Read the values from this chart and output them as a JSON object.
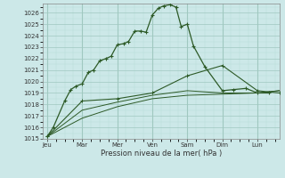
{
  "background_color": "#cce8e8",
  "grid_color_major": "#a0c8c0",
  "grid_color_minor": "#b8ddd8",
  "line_color": "#2d5a27",
  "xlabel": "Pression niveau de la mer( hPa )",
  "ylim": [
    1015,
    1026.8
  ],
  "yticks": [
    1015,
    1016,
    1017,
    1018,
    1019,
    1020,
    1021,
    1022,
    1023,
    1024,
    1025,
    1026
  ],
  "day_labels": [
    "Jeu",
    "Mar",
    "Mer",
    "Ven",
    "Sam",
    "Dim",
    "Lun"
  ],
  "day_positions": [
    0,
    40,
    80,
    120,
    160,
    200,
    240
  ],
  "xlim": [
    -5,
    265
  ],
  "series": [
    {
      "x": [
        0,
        7,
        20,
        27,
        33,
        40,
        47,
        53,
        60,
        67,
        73,
        80,
        87,
        93,
        100,
        107,
        113,
        120,
        127,
        133,
        140,
        147,
        153,
        160,
        167,
        180,
        200,
        213,
        227,
        240,
        253
      ],
      "y": [
        1015.2,
        1016.0,
        1018.3,
        1019.3,
        1019.6,
        1019.8,
        1020.8,
        1021.0,
        1021.8,
        1022.0,
        1022.2,
        1023.2,
        1023.3,
        1023.5,
        1024.4,
        1024.4,
        1024.3,
        1025.8,
        1026.4,
        1026.6,
        1026.7,
        1026.5,
        1024.8,
        1025.0,
        1023.1,
        1021.3,
        1019.2,
        1019.3,
        1019.4,
        1019.0,
        1019.0
      ]
    },
    {
      "x": [
        0,
        40,
        80,
        120,
        160,
        200,
        240,
        265
      ],
      "y": [
        1015.2,
        1018.3,
        1018.5,
        1019.0,
        1020.5,
        1021.4,
        1019.2,
        1019.0
      ]
    },
    {
      "x": [
        0,
        40,
        80,
        120,
        160,
        200,
        240,
        265
      ],
      "y": [
        1015.2,
        1017.5,
        1018.2,
        1018.8,
        1019.2,
        1019.0,
        1019.0,
        1019.2
      ]
    },
    {
      "x": [
        0,
        40,
        80,
        120,
        160,
        200,
        240,
        265
      ],
      "y": [
        1015.2,
        1016.8,
        1017.8,
        1018.5,
        1018.8,
        1018.9,
        1019.0,
        1019.2
      ]
    }
  ]
}
